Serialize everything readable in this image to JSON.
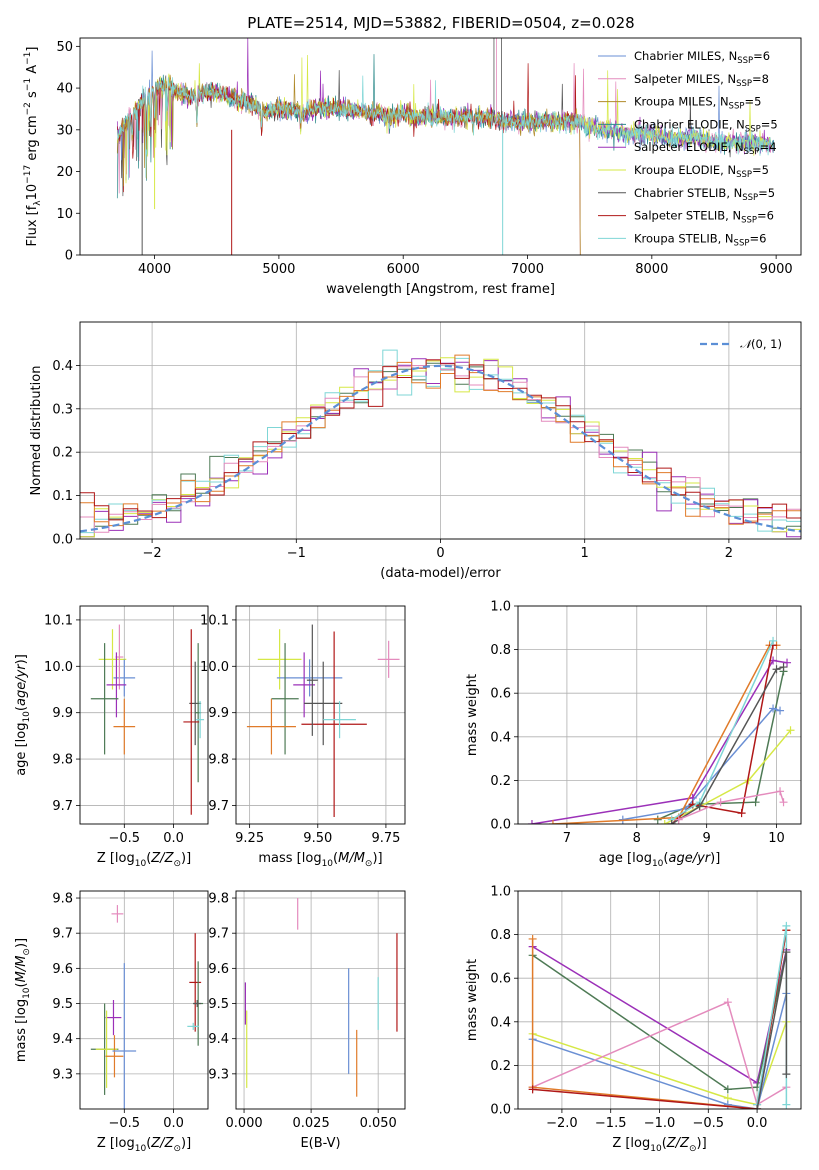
{
  "figure": {
    "title": "PLATE=2514, MJD=53882, FIBERID=0504, z=0.028",
    "colors": {
      "chabrier_miles": "#6a8fd4",
      "salpeter_miles": "#e48bbd",
      "kroupa_miles": "#b08a2a",
      "chabrier_elodie": "#2e8b8b",
      "salpeter_elodie": "#9b30b8",
      "kroupa_elodie": "#d6e846",
      "chabrier_stelib": "#555555",
      "salpeter_stelib": "#b01818",
      "kroupa_stelib": "#7fd6d6",
      "orange": "#e07b2a",
      "darkgreen": "#4e7a55",
      "normal_fit": "#5b8fd6"
    }
  },
  "chart_data": [
    {
      "id": "spectrum",
      "type": "line",
      "xlabel": "wavelength [Angstrom, rest frame]",
      "ylabel": "Flux [f_λ10^-17 erg cm^-2 s^-1 A^-1]",
      "xlim": [
        3400,
        9200
      ],
      "ylim": [
        0,
        52
      ],
      "xticks": [
        4000,
        5000,
        6000,
        7000,
        8000,
        9000
      ],
      "yticks": [
        0,
        10,
        20,
        30,
        40,
        50
      ],
      "grid": false,
      "legend_position": "top-right",
      "legend": [
        {
          "main": "Chabrier MILES, N",
          "sub": "SSP",
          "tail": "=6",
          "color": "#6a8fd4"
        },
        {
          "main": "Salpeter MILES, N",
          "sub": "SSP",
          "tail": "=8",
          "color": "#e48bbd"
        },
        {
          "main": "Kroupa MILES, N",
          "sub": "SSP",
          "tail": "=5",
          "color": "#b08a2a"
        },
        {
          "main": "Chabrier ELODIE, N",
          "sub": "SSP",
          "tail": "=5",
          "color": "#2e8b8b"
        },
        {
          "main": "Salpeter ELODIE, N",
          "sub": "SSP",
          "tail": "=4",
          "color": "#9b30b8"
        },
        {
          "main": "Kroupa ELODIE, N",
          "sub": "SSP",
          "tail": "=5",
          "color": "#d6e846"
        },
        {
          "main": "Chabrier STELIB, N",
          "sub": "SSP",
          "tail": "=5",
          "color": "#555555"
        },
        {
          "main": "Salpeter STELIB, N",
          "sub": "SSP",
          "tail": "=6",
          "color": "#b01818"
        },
        {
          "main": "Kroupa STELIB, N",
          "sub": "SSP",
          "tail": "=6",
          "color": "#7fd6d6"
        }
      ],
      "spectrum_shape": [
        [
          3700,
          28
        ],
        [
          3750,
          31
        ],
        [
          3800,
          33
        ],
        [
          3850,
          35
        ],
        [
          3900,
          37
        ],
        [
          3950,
          38
        ],
        [
          4000,
          40
        ],
        [
          4100,
          41
        ],
        [
          4200,
          39
        ],
        [
          4300,
          38
        ],
        [
          4400,
          39
        ],
        [
          4500,
          39
        ],
        [
          4600,
          38
        ],
        [
          4700,
          37
        ],
        [
          4800,
          36
        ],
        [
          4900,
          34
        ],
        [
          5000,
          35
        ],
        [
          5100,
          35
        ],
        [
          5200,
          34
        ],
        [
          5300,
          35
        ],
        [
          5400,
          35
        ],
        [
          5500,
          35
        ],
        [
          5600,
          35
        ],
        [
          5700,
          34
        ],
        [
          5800,
          34
        ],
        [
          5900,
          33
        ],
        [
          6000,
          34
        ],
        [
          6100,
          33
        ],
        [
          6200,
          33
        ],
        [
          6300,
          33
        ],
        [
          6400,
          33
        ],
        [
          6500,
          33
        ],
        [
          6600,
          33
        ],
        [
          6700,
          33
        ],
        [
          6800,
          32
        ],
        [
          6900,
          32
        ],
        [
          7000,
          32
        ],
        [
          7100,
          32
        ],
        [
          7200,
          32
        ],
        [
          7300,
          32
        ],
        [
          7400,
          32
        ],
        [
          7500,
          31
        ],
        [
          7600,
          30
        ],
        [
          7700,
          30
        ],
        [
          7800,
          29
        ],
        [
          7900,
          29
        ],
        [
          8000,
          29
        ],
        [
          8100,
          28
        ],
        [
          8200,
          28
        ],
        [
          8300,
          28
        ],
        [
          8400,
          28
        ],
        [
          8500,
          27
        ],
        [
          8600,
          27
        ],
        [
          8700,
          27
        ],
        [
          8800,
          27
        ],
        [
          8900,
          27
        ],
        [
          8980,
          26
        ]
      ]
    },
    {
      "id": "residuals",
      "type": "histogram",
      "xlabel": "(data-model)/error",
      "ylabel": "Normed distribution",
      "xlim": [
        -2.5,
        2.5
      ],
      "ylim": [
        0,
        0.5
      ],
      "xticks": [
        -2,
        -1,
        0,
        1,
        2
      ],
      "yticks": [
        0.0,
        0.1,
        0.2,
        0.3,
        0.4
      ],
      "grid": true,
      "legend_position": "top-right",
      "normal_label": "N(0,1)",
      "bin_width": 0.1
    },
    {
      "id": "age_vs_Z",
      "type": "errorbar",
      "xlabel": "Z [log10(Z/Z⊙)]",
      "ylabel": "age [log10(age/yr)]",
      "xlim": [
        -0.95,
        0.35
      ],
      "ylim": [
        9.66,
        10.13
      ],
      "xticks": [
        -0.5,
        0.0
      ],
      "yticks": [
        9.7,
        9.8,
        9.9,
        10.0,
        10.1
      ],
      "grid": true
    },
    {
      "id": "age_vs_mass",
      "type": "errorbar",
      "xlabel": "mass [log10(M/M⊙)]",
      "ylabel": "",
      "xlim": [
        9.2,
        9.82
      ],
      "ylim": [
        9.66,
        10.13
      ],
      "xticks": [
        9.25,
        9.5,
        9.75
      ],
      "yticks": [
        9.7,
        9.8,
        9.9,
        10.0,
        10.1
      ],
      "grid": true
    },
    {
      "id": "massweight_vs_age",
      "type": "line",
      "xlabel": "age [log10(age/yr)]",
      "ylabel": "mass weight",
      "xlim": [
        6.3,
        10.35
      ],
      "ylim": [
        0,
        1
      ],
      "xticks": [
        7,
        8,
        9,
        10
      ],
      "yticks": [
        0.0,
        0.2,
        0.4,
        0.6,
        0.8,
        1.0
      ],
      "grid": true
    },
    {
      "id": "mass_vs_Z",
      "type": "errorbar",
      "xlabel": "Z [log10(Z/Z⊙)]",
      "ylabel": "mass [log10(M/M⊙)]",
      "xlim": [
        -0.95,
        0.35
      ],
      "ylim": [
        9.2,
        9.82
      ],
      "xticks": [
        -0.5,
        0.0
      ],
      "yticks": [
        9.3,
        9.4,
        9.5,
        9.6,
        9.7,
        9.8
      ],
      "grid": true
    },
    {
      "id": "mass_vs_ebv",
      "type": "errorbar",
      "xlabel": "E(B-V)",
      "ylabel": "",
      "xlim": [
        -0.003,
        0.06
      ],
      "ylim": [
        9.2,
        9.82
      ],
      "xticks": [
        0.0,
        0.025,
        0.05
      ],
      "xtick_labels": [
        "0.000",
        "0.025",
        "0.050"
      ],
      "yticks": [
        9.3,
        9.4,
        9.5,
        9.6,
        9.7,
        9.8
      ],
      "grid": true
    },
    {
      "id": "massweight_vs_Z",
      "type": "line",
      "xlabel": "Z [log10(Z/Z⊙)]",
      "ylabel": "mass weight",
      "xlim": [
        -2.45,
        0.45
      ],
      "ylim": [
        0,
        1
      ],
      "xticks": [
        -2.0,
        -1.5,
        -1.0,
        -0.5,
        0.0
      ],
      "yticks": [
        0.0,
        0.2,
        0.4,
        0.6,
        0.8,
        1.0
      ],
      "grid": true
    }
  ]
}
